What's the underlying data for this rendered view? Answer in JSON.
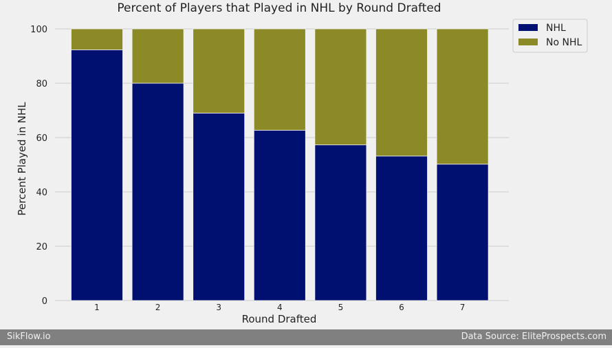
{
  "chart_data": {
    "type": "bar",
    "stacked": true,
    "title": "Percent of Players that Played in NHL by Round Drafted",
    "xlabel": "Round Drafted",
    "ylabel": "Percent Played in NHL",
    "categories": [
      "1",
      "2",
      "3",
      "4",
      "5",
      "6",
      "7"
    ],
    "ylim": [
      0,
      100
    ],
    "yticks": [
      0,
      20,
      40,
      60,
      80,
      100
    ],
    "grid": true,
    "legend": "top-right",
    "series": [
      {
        "name": "NHL",
        "color": "#001070",
        "values": [
          92.3,
          80.0,
          69.0,
          62.7,
          57.3,
          53.2,
          50.2
        ]
      },
      {
        "name": "No NHL",
        "color": "#8b8a27",
        "values": [
          7.7,
          20.0,
          31.0,
          37.3,
          42.7,
          46.8,
          49.8
        ]
      }
    ]
  },
  "footer": {
    "left": "SikFlow.io",
    "right": "Data Source: EliteProspects.com"
  }
}
